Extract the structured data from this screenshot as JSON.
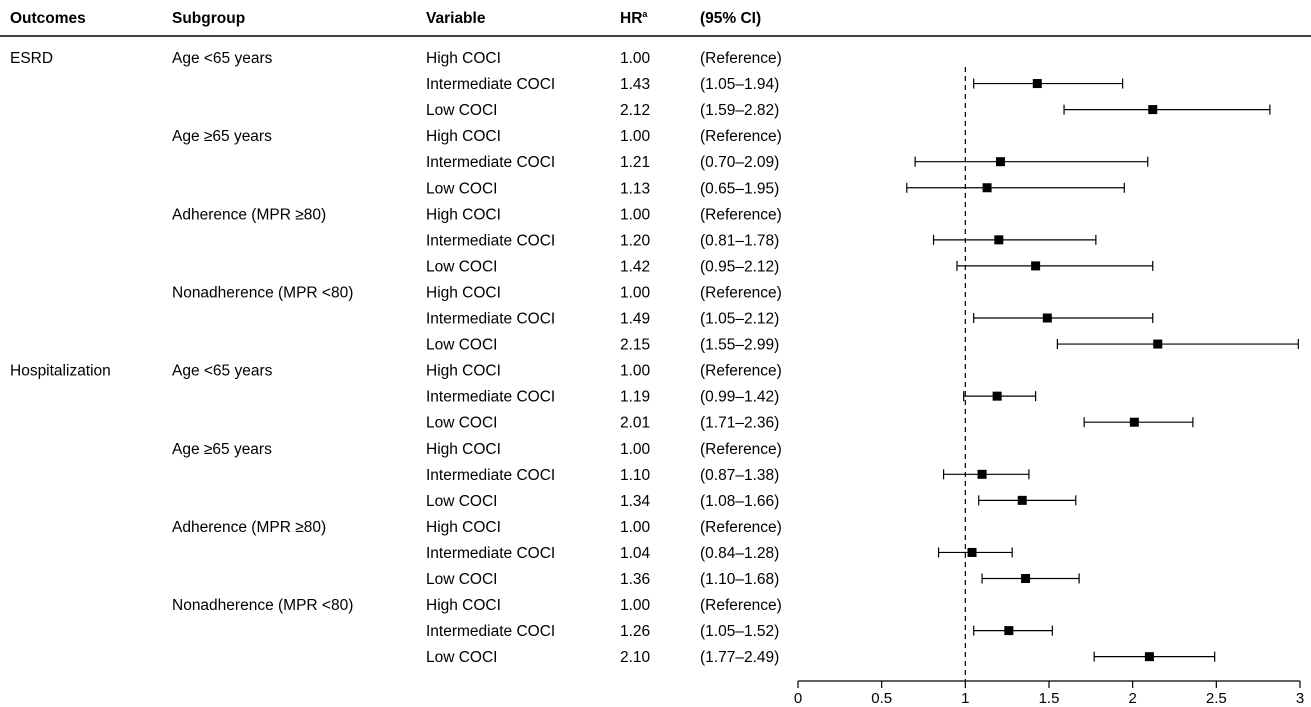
{
  "headers": {
    "outcomes": "Outcomes",
    "subgroup": "Subgroup",
    "variable": "Variable",
    "hr": "HR",
    "hr_sup": "a",
    "ci": "(95% CI)"
  },
  "chart_data": {
    "type": "forest",
    "reference_line": 1,
    "xlim": [
      0,
      3
    ],
    "x_ticks": [
      "0",
      "0.5",
      "1",
      "1.5",
      "2",
      "2.5",
      "3"
    ],
    "rows": [
      {
        "outcome": "ESRD",
        "subgroup": "Age <65 years",
        "variable": "High COCI",
        "hr": "1.00",
        "ci": "(Reference)",
        "est": null,
        "lo": null,
        "hi": null
      },
      {
        "outcome": "",
        "subgroup": "",
        "variable": "Intermediate COCI",
        "hr": "1.43",
        "ci": "(1.05–1.94)",
        "est": 1.43,
        "lo": 1.05,
        "hi": 1.94
      },
      {
        "outcome": "",
        "subgroup": "",
        "variable": "Low COCI",
        "hr": "2.12",
        "ci": "(1.59–2.82)",
        "est": 2.12,
        "lo": 1.59,
        "hi": 2.82
      },
      {
        "outcome": "",
        "subgroup": "Age ≥65 years",
        "variable": "High COCI",
        "hr": "1.00",
        "ci": "(Reference)",
        "est": null,
        "lo": null,
        "hi": null
      },
      {
        "outcome": "",
        "subgroup": "",
        "variable": "Intermediate COCI",
        "hr": "1.21",
        "ci": "(0.70–2.09)",
        "est": 1.21,
        "lo": 0.7,
        "hi": 2.09
      },
      {
        "outcome": "",
        "subgroup": "",
        "variable": "Low COCI",
        "hr": "1.13",
        "ci": "(0.65–1.95)",
        "est": 1.13,
        "lo": 0.65,
        "hi": 1.95
      },
      {
        "outcome": "",
        "subgroup": "Adherence (MPR ≥80)",
        "variable": "High COCI",
        "hr": "1.00",
        "ci": "(Reference)",
        "est": null,
        "lo": null,
        "hi": null
      },
      {
        "outcome": "",
        "subgroup": "",
        "variable": "Intermediate COCI",
        "hr": "1.20",
        "ci": "(0.81–1.78)",
        "est": 1.2,
        "lo": 0.81,
        "hi": 1.78
      },
      {
        "outcome": "",
        "subgroup": "",
        "variable": "Low COCI",
        "hr": "1.42",
        "ci": "(0.95–2.12)",
        "est": 1.42,
        "lo": 0.95,
        "hi": 2.12
      },
      {
        "outcome": "",
        "subgroup": "Nonadherence (MPR <80)",
        "variable": "High COCI",
        "hr": "1.00",
        "ci": "(Reference)",
        "est": null,
        "lo": null,
        "hi": null
      },
      {
        "outcome": "",
        "subgroup": "",
        "variable": "Intermediate COCI",
        "hr": "1.49",
        "ci": "(1.05–2.12)",
        "est": 1.49,
        "lo": 1.05,
        "hi": 2.12
      },
      {
        "outcome": "",
        "subgroup": "",
        "variable": "Low COCI",
        "hr": "2.15",
        "ci": "(1.55–2.99)",
        "est": 2.15,
        "lo": 1.55,
        "hi": 2.99
      },
      {
        "outcome": "Hospitalization",
        "subgroup": "Age <65 years",
        "variable": "High COCI",
        "hr": "1.00",
        "ci": "(Reference)",
        "est": null,
        "lo": null,
        "hi": null
      },
      {
        "outcome": "",
        "subgroup": "",
        "variable": "Intermediate COCI",
        "hr": "1.19",
        "ci": "(0.99–1.42)",
        "est": 1.19,
        "lo": 0.99,
        "hi": 1.42
      },
      {
        "outcome": "",
        "subgroup": "",
        "variable": "Low COCI",
        "hr": "2.01",
        "ci": "(1.71–2.36)",
        "est": 2.01,
        "lo": 1.71,
        "hi": 2.36
      },
      {
        "outcome": "",
        "subgroup": "Age ≥65 years",
        "variable": "High COCI",
        "hr": "1.00",
        "ci": "(Reference)",
        "est": null,
        "lo": null,
        "hi": null
      },
      {
        "outcome": "",
        "subgroup": "",
        "variable": "Intermediate COCI",
        "hr": "1.10",
        "ci": "(0.87–1.38)",
        "est": 1.1,
        "lo": 0.87,
        "hi": 1.38
      },
      {
        "outcome": "",
        "subgroup": "",
        "variable": "Low COCI",
        "hr": "1.34",
        "ci": "(1.08–1.66)",
        "est": 1.34,
        "lo": 1.08,
        "hi": 1.66
      },
      {
        "outcome": "",
        "subgroup": "Adherence (MPR ≥80)",
        "variable": "High COCI",
        "hr": "1.00",
        "ci": "(Reference)",
        "est": null,
        "lo": null,
        "hi": null
      },
      {
        "outcome": "",
        "subgroup": "",
        "variable": "Intermediate COCI",
        "hr": "1.04",
        "ci": "(0.84–1.28)",
        "est": 1.04,
        "lo": 0.84,
        "hi": 1.28
      },
      {
        "outcome": "",
        "subgroup": "",
        "variable": "Low COCI",
        "hr": "1.36",
        "ci": "(1.10–1.68)",
        "est": 1.36,
        "lo": 1.1,
        "hi": 1.68
      },
      {
        "outcome": "",
        "subgroup": "Nonadherence (MPR <80)",
        "variable": "High COCI",
        "hr": "1.00",
        "ci": "(Reference)",
        "est": null,
        "lo": null,
        "hi": null
      },
      {
        "outcome": "",
        "subgroup": "",
        "variable": "Intermediate COCI",
        "hr": "1.26",
        "ci": "(1.05–1.52)",
        "est": 1.26,
        "lo": 1.05,
        "hi": 1.52
      },
      {
        "outcome": "",
        "subgroup": "",
        "variable": "Low COCI",
        "hr": "2.10",
        "ci": "(1.77–2.49)",
        "est": 2.1,
        "lo": 1.77,
        "hi": 2.49
      }
    ]
  }
}
